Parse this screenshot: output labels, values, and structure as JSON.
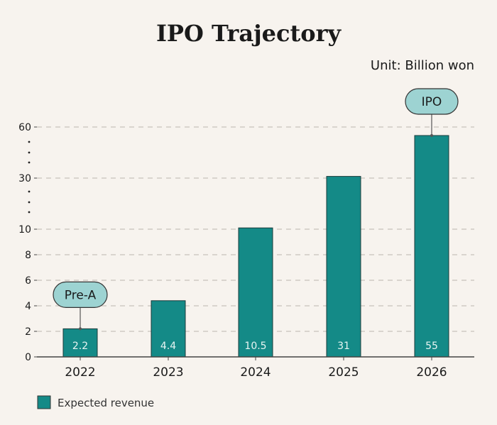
{
  "chart_data": {
    "type": "bar",
    "title": "IPO Trajectory",
    "unit_label": "Unit: Billion won",
    "categories": [
      "2022",
      "2023",
      "2024",
      "2025",
      "2026"
    ],
    "series": [
      {
        "name": "Expected revenue",
        "values": [
          2.2,
          4.4,
          10.5,
          31,
          55
        ],
        "color": "#148a87"
      }
    ],
    "data_labels": [
      "2.2",
      "4.4",
      "10.5",
      "31",
      "55"
    ],
    "y_ticks": [
      "0",
      "2",
      "4",
      "6",
      "8",
      "10",
      "30",
      "60"
    ],
    "y_axis": "broken scale: linear 0–10, then breaks to 30 and 60",
    "grid": true,
    "callouts": [
      {
        "category": "2022",
        "text": "Pre-A"
      },
      {
        "category": "2026",
        "text": "IPO"
      }
    ],
    "legend_position": "bottom-left",
    "colors": {
      "bar": "#148a87",
      "callout_fill": "#9dd3d2",
      "grid": "#cfcac3",
      "background": "#f7f3ee"
    }
  }
}
